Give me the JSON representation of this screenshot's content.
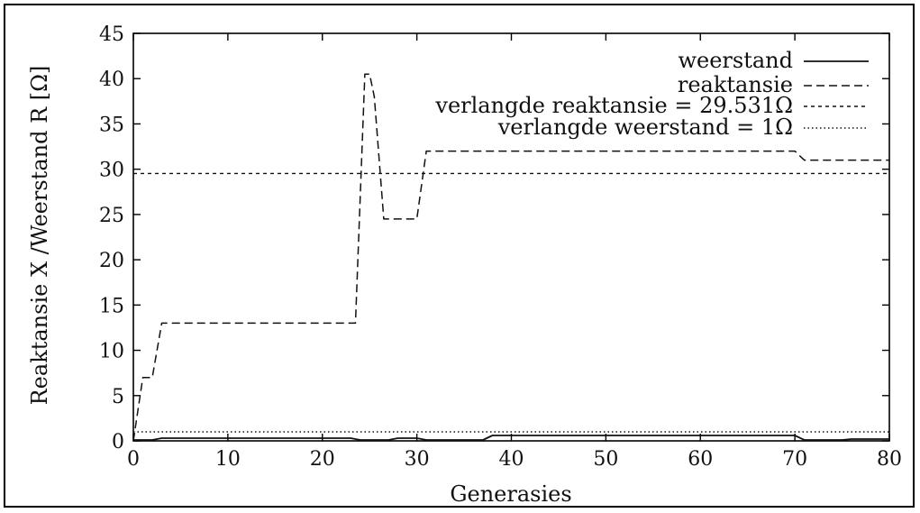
{
  "chart_data": {
    "type": "line",
    "title": "",
    "xlabel": "Generasies",
    "ylabel": "Reaktansie X /Weerstand R [Ω]",
    "xlim": [
      0,
      80
    ],
    "ylim": [
      0,
      45
    ],
    "xticks": [
      0,
      10,
      20,
      30,
      40,
      50,
      60,
      70,
      80
    ],
    "xtick_labels": [
      "0",
      "10",
      "20",
      "30",
      "40",
      "50",
      "60",
      "70",
      "80"
    ],
    "yticks": [
      0,
      5,
      10,
      15,
      20,
      25,
      30,
      35,
      40,
      45
    ],
    "ytick_labels": [
      "0",
      "5",
      "10",
      "15",
      "20",
      "25",
      "30",
      "35",
      "40",
      "45"
    ],
    "grid": false,
    "legend_position": "top-right",
    "series": [
      {
        "name": "weerstand",
        "style": "solid",
        "x": [
          0,
          2,
          3,
          23,
          24,
          27,
          28,
          30,
          31,
          37,
          38,
          70,
          71,
          75,
          76,
          80
        ],
        "y": [
          0.1,
          0.1,
          0.3,
          0.3,
          0.1,
          0.1,
          0.3,
          0.3,
          0.1,
          0.1,
          0.6,
          0.6,
          0.1,
          0.1,
          0.2,
          0.2
        ]
      },
      {
        "name": "reaktansie",
        "style": "dashed",
        "x": [
          0,
          1,
          1.5,
          2,
          3,
          23.5,
          24.5,
          25,
          25.5,
          26.5,
          30,
          31,
          70,
          71,
          80
        ],
        "y": [
          0,
          7,
          7,
          7,
          13,
          13,
          40.5,
          40.5,
          38,
          24.5,
          24.5,
          32,
          32,
          31,
          31
        ]
      },
      {
        "name": "verlangde reaktansie = 29.531Ω",
        "style": "short-dashed",
        "x": [
          0,
          80
        ],
        "y": [
          29.531,
          29.531
        ]
      },
      {
        "name": "verlangde weerstand = 1Ω",
        "style": "dotted",
        "x": [
          0,
          80
        ],
        "y": [
          1,
          1
        ]
      }
    ]
  }
}
